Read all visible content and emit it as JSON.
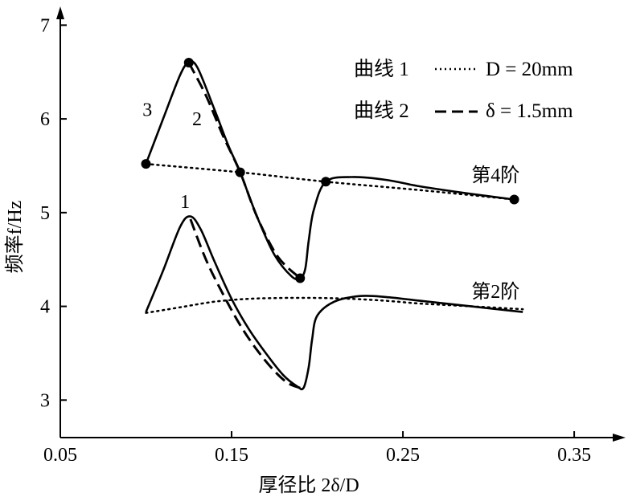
{
  "chart_data": {
    "type": "line",
    "xlabel": "厚径比 2δ/D",
    "ylabel": "频率f/Hz",
    "xlim": [
      0.05,
      0.38
    ],
    "ylim": [
      2.6,
      7.2
    ],
    "x_ticks": [
      {
        "value": 0.05,
        "label": "0.05"
      },
      {
        "value": 0.15,
        "label": "0.15"
      },
      {
        "value": 0.25,
        "label": "0.25"
      },
      {
        "value": 0.35,
        "label": "0.35"
      }
    ],
    "y_ticks": [
      {
        "value": 3,
        "label": "3"
      },
      {
        "value": 4,
        "label": "4"
      },
      {
        "value": 5,
        "label": "5"
      },
      {
        "value": 6,
        "label": "6"
      },
      {
        "value": 7,
        "label": "7"
      }
    ],
    "legend": {
      "placement": "top-right",
      "entries": [
        {
          "label": "曲线 1",
          "value": "D = 20mm",
          "style": "dotted"
        },
        {
          "label": "曲线 2",
          "value": "δ = 1.5mm",
          "style": "dashed"
        }
      ]
    },
    "series": [
      {
        "name": "曲线 1",
        "mode": "第4阶",
        "style": "dotted",
        "points": [
          [
            0.1,
            5.52
          ],
          [
            0.155,
            5.43
          ],
          [
            0.205,
            5.33
          ],
          [
            0.26,
            5.24
          ],
          [
            0.315,
            5.14
          ]
        ]
      },
      {
        "name": "曲线 2",
        "mode": "第4阶",
        "style": "dashed",
        "points": [
          [
            0.125,
            6.6
          ],
          [
            0.135,
            6.25
          ],
          [
            0.145,
            5.82
          ],
          [
            0.155,
            5.43
          ],
          [
            0.165,
            4.95
          ],
          [
            0.177,
            4.53
          ],
          [
            0.19,
            4.3
          ]
        ]
      },
      {
        "name": "3",
        "mode": "第4阶",
        "style": "solid",
        "points": [
          [
            0.1,
            5.52
          ],
          [
            0.11,
            6.0
          ],
          [
            0.12,
            6.47
          ],
          [
            0.125,
            6.6
          ],
          [
            0.13,
            6.55
          ],
          [
            0.14,
            6.1
          ],
          [
            0.148,
            5.72
          ],
          [
            0.155,
            5.43
          ],
          [
            0.165,
            4.95
          ],
          [
            0.175,
            4.55
          ],
          [
            0.185,
            4.32
          ],
          [
            0.19,
            4.3
          ],
          [
            0.193,
            4.4
          ],
          [
            0.195,
            4.7
          ],
          [
            0.198,
            5.03
          ],
          [
            0.205,
            5.33
          ],
          [
            0.22,
            5.38
          ],
          [
            0.24,
            5.35
          ],
          [
            0.26,
            5.28
          ],
          [
            0.29,
            5.2
          ],
          [
            0.315,
            5.14
          ]
        ]
      },
      {
        "name": "曲线 1",
        "mode": "第2阶",
        "style": "dotted",
        "points": [
          [
            0.1,
            3.93
          ],
          [
            0.12,
            3.99
          ],
          [
            0.14,
            4.05
          ],
          [
            0.16,
            4.08
          ],
          [
            0.18,
            4.09
          ],
          [
            0.2,
            4.09
          ],
          [
            0.22,
            4.08
          ],
          [
            0.24,
            4.06
          ],
          [
            0.26,
            4.03
          ],
          [
            0.28,
            4.01
          ],
          [
            0.3,
            3.99
          ],
          [
            0.32,
            3.97
          ]
        ]
      },
      {
        "name": "曲线 2",
        "mode": "第2阶",
        "style": "dashed",
        "points": [
          [
            0.126,
            4.93
          ],
          [
            0.135,
            4.5
          ],
          [
            0.145,
            4.13
          ],
          [
            0.155,
            3.8
          ],
          [
            0.165,
            3.53
          ],
          [
            0.175,
            3.31
          ],
          [
            0.183,
            3.18
          ],
          [
            0.19,
            3.13
          ]
        ]
      },
      {
        "name": "1",
        "mode": "第2阶",
        "style": "solid",
        "points": [
          [
            0.1,
            3.94
          ],
          [
            0.11,
            4.38
          ],
          [
            0.12,
            4.85
          ],
          [
            0.126,
            4.96
          ],
          [
            0.132,
            4.82
          ],
          [
            0.14,
            4.48
          ],
          [
            0.15,
            4.08
          ],
          [
            0.16,
            3.76
          ],
          [
            0.17,
            3.5
          ],
          [
            0.18,
            3.27
          ],
          [
            0.188,
            3.15
          ],
          [
            0.192,
            3.13
          ],
          [
            0.195,
            3.35
          ],
          [
            0.197,
            3.65
          ],
          [
            0.2,
            3.9
          ],
          [
            0.21,
            4.05
          ],
          [
            0.225,
            4.11
          ],
          [
            0.24,
            4.1
          ],
          [
            0.26,
            4.06
          ],
          [
            0.29,
            4.0
          ],
          [
            0.32,
            3.94
          ]
        ]
      }
    ],
    "markers": [
      [
        0.1,
        5.52
      ],
      [
        0.125,
        6.6
      ],
      [
        0.155,
        5.43
      ],
      [
        0.19,
        4.3
      ],
      [
        0.205,
        5.33
      ],
      [
        0.315,
        5.14
      ]
    ],
    "annotations": [
      {
        "text": "3",
        "x": 0.098,
        "y": 6.1
      },
      {
        "text": "2",
        "x": 0.127,
        "y": 6.0
      },
      {
        "text": "1",
        "x": 0.12,
        "y": 5.12
      },
      {
        "text": "第4阶",
        "x": 0.29,
        "y": 5.4
      },
      {
        "text": "第2阶",
        "x": 0.29,
        "y": 4.16
      }
    ],
    "grid": false
  }
}
